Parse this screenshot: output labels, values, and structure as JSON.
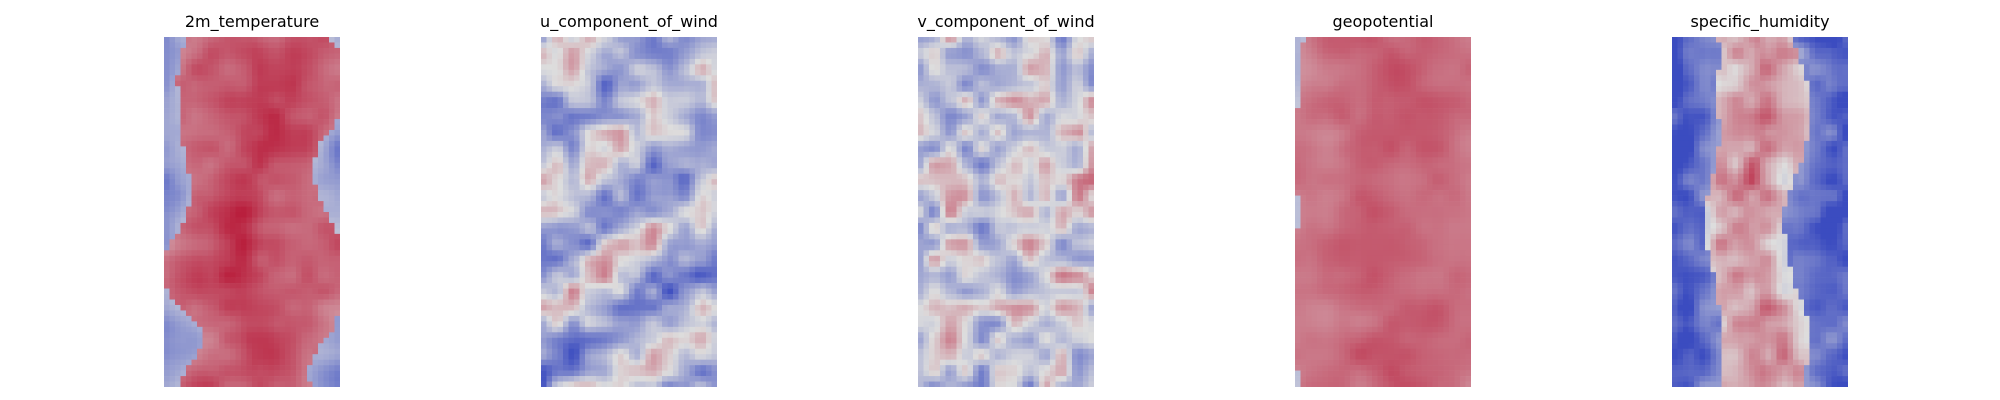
{
  "chart_data": [
    {
      "type": "heatmap",
      "title": "2m_temperature",
      "colormap": "coolwarm",
      "axes": "off",
      "grid": false,
      "colors": {
        "low": "#3b4cc0",
        "mid": "#dddddd",
        "high": "#b40426"
      },
      "pattern": "warm-band",
      "seed": 11
    },
    {
      "type": "heatmap",
      "title": "u_component_of_wind",
      "colormap": "coolwarm",
      "axes": "off",
      "grid": false,
      "colors": {
        "low": "#3b4cc0",
        "mid": "#dddddd",
        "high": "#b40426"
      },
      "pattern": "wavy-noise",
      "seed": 23
    },
    {
      "type": "heatmap",
      "title": "v_component_of_wind",
      "colormap": "coolwarm",
      "axes": "off",
      "grid": false,
      "colors": {
        "low": "#3b4cc0",
        "mid": "#dddddd",
        "high": "#b40426"
      },
      "pattern": "blobby-noise",
      "seed": 37
    },
    {
      "type": "heatmap",
      "title": "geopotential",
      "colormap": "coolwarm",
      "axes": "off",
      "grid": false,
      "colors": {
        "low": "#3b4cc0",
        "mid": "#dddddd",
        "high": "#b40426"
      },
      "pattern": "smooth-band",
      "seed": 41
    },
    {
      "type": "heatmap",
      "title": "specific_humidity",
      "colormap": "coolwarm",
      "axes": "off",
      "grid": false,
      "colors": {
        "low": "#3b4cc0",
        "mid": "#dddddd",
        "high": "#b40426"
      },
      "pattern": "narrow-moist-band",
      "seed": 53
    }
  ]
}
